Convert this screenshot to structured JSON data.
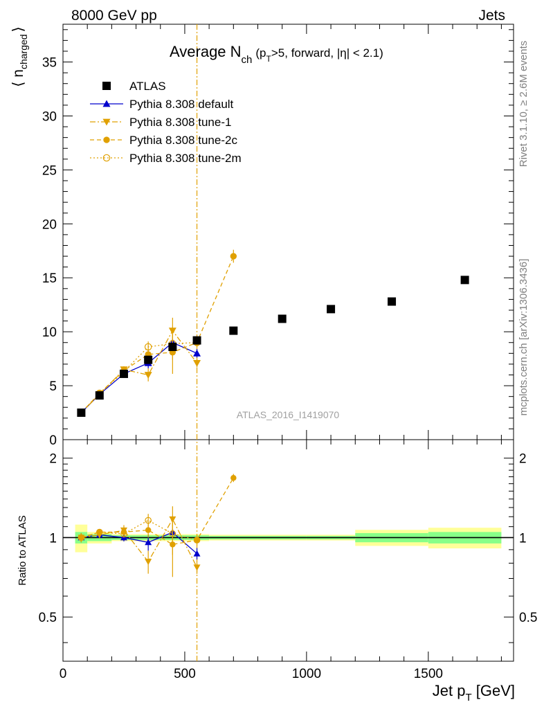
{
  "header": {
    "left": "8000 GeV pp",
    "right": "Jets"
  },
  "side_labels": {
    "rivet": "Rivet 3.1.10, ≥ 2.6M events",
    "mcplots": "mcplots.cern.ch [arXiv:1306.3436]"
  },
  "chart_data": {
    "type": "scatter",
    "title": {
      "main": "Average N",
      "main_sub": "ch",
      "p1": "(p",
      "p1_sub": "T",
      "p2": ">5, forward, |η| < 2.1)"
    },
    "watermark": "ATLAS_2016_I1419070",
    "ylabel": {
      "open": "⟨ n",
      "sub": "charged",
      "close": "⟩"
    },
    "ratio_ylabel": "Ratio to ATLAS",
    "xlabel": {
      "main": "Jet p",
      "sub": "T",
      "unit": " [GeV]"
    },
    "xlim": [
      0,
      1850
    ],
    "ylim": [
      0,
      38.5
    ],
    "ratio_ylim": [
      0.34,
      2.35
    ],
    "x_ticks": [
      0,
      500,
      1000,
      1500
    ],
    "x_tick_labels": [
      "0",
      "500",
      "1000",
      "1500"
    ],
    "y_ticks": [
      0,
      5,
      10,
      15,
      20,
      25,
      30,
      35
    ],
    "y_tick_labels": [
      "0",
      "5",
      "10",
      "15",
      "20",
      "25",
      "30",
      "35"
    ],
    "ratio_ticks": [
      0.5,
      1,
      2
    ],
    "ratio_tick_labels": [
      "0.5",
      "1",
      "2"
    ],
    "vline_x": 550,
    "series": [
      {
        "name": "ATLAS",
        "color": "#000000",
        "marker": "square",
        "line": "none",
        "x": [
          75,
          150,
          250,
          350,
          450,
          550,
          700,
          900,
          1100,
          1350,
          1650
        ],
        "y": [
          2.5,
          4.1,
          6.1,
          7.4,
          8.6,
          9.2,
          10.1,
          11.2,
          12.1,
          12.8,
          14.8
        ]
      },
      {
        "name": "Pythia 8.308 default",
        "color": "#0000cc",
        "marker": "triangle-up",
        "line": "solid",
        "x": [
          75,
          150,
          250,
          350,
          450,
          550
        ],
        "y": [
          2.5,
          4.2,
          6.1,
          7.1,
          9.0,
          8.0
        ],
        "err": [
          0.1,
          0.1,
          0.2,
          0.5,
          0.3,
          0.4
        ]
      },
      {
        "name": "Pythia 8.308 tune-1",
        "color": "#e0a000",
        "marker": "triangle-down",
        "line": "dashdot",
        "x": [
          75,
          150,
          250,
          350,
          450,
          550
        ],
        "y": [
          2.5,
          4.2,
          6.5,
          6.0,
          10.1,
          7.1
        ],
        "err": [
          0.1,
          0.1,
          0.3,
          0.6,
          1.2,
          0.4
        ]
      },
      {
        "name": "Pythia 8.308 tune-2c",
        "color": "#e0a000",
        "marker": "circle",
        "line": "dashed",
        "x": [
          75,
          150,
          250,
          350,
          450,
          550,
          700
        ],
        "y": [
          2.5,
          4.3,
          6.4,
          7.9,
          8.1,
          9.0,
          17.0
        ],
        "err": [
          0.1,
          0.1,
          0.2,
          0.5,
          2.0,
          0.4,
          0.6
        ]
      },
      {
        "name": "Pythia 8.308 tune-2m",
        "color": "#e0a000",
        "marker": "circle-open",
        "line": "dotted",
        "x": [
          75,
          150,
          250,
          350,
          450,
          550
        ],
        "y": [
          2.5,
          4.3,
          6.3,
          8.6,
          8.9,
          9.0
        ],
        "err": [
          0.1,
          0.1,
          0.2,
          0.5,
          1.5,
          0.4
        ]
      }
    ],
    "bins": [
      {
        "lo": 50,
        "hi": 100,
        "green": 0.05,
        "yellow": 0.12
      },
      {
        "lo": 100,
        "hi": 200,
        "green": 0.03,
        "yellow": 0.05
      },
      {
        "lo": 200,
        "hi": 300,
        "green": 0.02,
        "yellow": 0.03
      },
      {
        "lo": 300,
        "hi": 400,
        "green": 0.02,
        "yellow": 0.03
      },
      {
        "lo": 400,
        "hi": 500,
        "green": 0.02,
        "yellow": 0.03
      },
      {
        "lo": 500,
        "hi": 600,
        "green": 0.02,
        "yellow": 0.03
      },
      {
        "lo": 600,
        "hi": 800,
        "green": 0.015,
        "yellow": 0.025
      },
      {
        "lo": 800,
        "hi": 1000,
        "green": 0.015,
        "yellow": 0.025
      },
      {
        "lo": 1000,
        "hi": 1200,
        "green": 0.015,
        "yellow": 0.025
      },
      {
        "lo": 1200,
        "hi": 1500,
        "green": 0.04,
        "yellow": 0.07
      },
      {
        "lo": 1500,
        "hi": 1800,
        "green": 0.05,
        "yellow": 0.09
      }
    ],
    "colors": {
      "band_green": "#88ff88",
      "band_yellow": "#ffff99",
      "vline": "#e0a000"
    }
  }
}
